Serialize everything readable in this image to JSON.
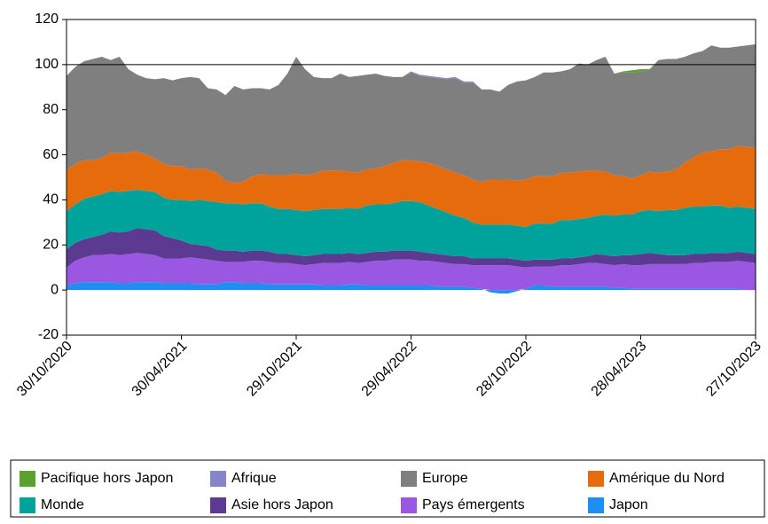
{
  "chart_data": {
    "type": "stacked_area",
    "x": [
      "30/10/2020",
      "13/11/2020",
      "27/11/2020",
      "11/12/2020",
      "25/12/2020",
      "08/01/2021",
      "22/01/2021",
      "05/02/2021",
      "19/02/2021",
      "05/03/2021",
      "19/03/2021",
      "02/04/2021",
      "16/04/2021",
      "30/04/2021",
      "14/05/2021",
      "28/05/2021",
      "11/06/2021",
      "25/06/2021",
      "09/07/2021",
      "23/07/2021",
      "06/08/2021",
      "20/08/2021",
      "03/09/2021",
      "17/09/2021",
      "01/10/2021",
      "15/10/2021",
      "29/10/2021",
      "12/11/2021",
      "26/11/2021",
      "10/12/2021",
      "24/12/2021",
      "07/01/2022",
      "21/01/2022",
      "04/02/2022",
      "18/02/2022",
      "04/03/2022",
      "18/03/2022",
      "01/04/2022",
      "15/04/2022",
      "29/04/2022",
      "13/05/2022",
      "27/05/2022",
      "10/06/2022",
      "24/06/2022",
      "08/07/2022",
      "22/07/2022",
      "05/08/2022",
      "19/08/2022",
      "02/09/2022",
      "16/09/2022",
      "30/09/2022",
      "14/10/2022",
      "28/10/2022",
      "11/11/2022",
      "25/11/2022",
      "09/12/2022",
      "23/12/2022",
      "06/01/2023",
      "20/01/2023",
      "03/02/2023",
      "17/02/2023",
      "03/03/2023",
      "17/03/2023",
      "31/03/2023",
      "14/04/2023",
      "28/04/2023",
      "12/05/2023",
      "26/05/2023",
      "09/06/2023",
      "23/06/2023",
      "07/07/2023",
      "21/07/2023",
      "04/08/2023",
      "18/08/2023",
      "01/09/2023",
      "15/09/2023",
      "29/09/2023",
      "13/10/2023",
      "27/10/2023"
    ],
    "xticks": [
      "30/10/2020",
      "30/04/2021",
      "29/10/2021",
      "29/04/2022",
      "28/10/2022",
      "28/04/2023",
      "27/10/2023"
    ],
    "ylim": [
      -20,
      120
    ],
    "yticks": [
      -20,
      0,
      20,
      40,
      60,
      80,
      100,
      120
    ],
    "hline": 100,
    "series": [
      {
        "name": "Pacifique hors Japon",
        "color": "#5ba12e",
        "values": [
          0,
          0,
          0,
          0,
          0,
          0,
          0,
          0,
          0,
          0,
          0,
          0,
          0,
          0,
          0,
          0,
          0,
          0,
          0,
          0,
          0,
          0,
          0,
          0,
          0,
          0,
          0,
          0,
          0,
          0,
          0,
          0,
          0,
          0,
          0,
          0,
          0,
          0,
          0,
          0,
          0,
          0,
          0,
          0,
          0,
          0,
          0,
          0,
          0,
          0,
          0,
          0,
          0,
          0,
          0,
          0,
          0,
          0,
          0,
          0,
          0,
          0,
          0,
          0.5,
          1,
          1,
          0.5,
          0,
          0,
          0,
          0,
          0,
          0,
          0,
          0,
          0,
          0,
          0,
          0
        ]
      },
      {
        "name": "Afrique",
        "color": "#8585c8",
        "values": [
          0,
          0,
          0,
          0,
          0,
          0,
          0,
          0,
          0,
          0,
          0,
          0,
          0,
          0,
          0,
          0,
          0,
          0,
          0,
          0,
          0,
          0,
          0,
          0,
          0,
          0,
          0,
          0,
          0,
          0,
          0,
          0,
          0,
          0,
          0,
          0,
          0,
          0,
          0,
          0.5,
          0.5,
          0.5,
          0.5,
          0.5,
          0.5,
          0.5,
          0.5,
          0,
          0,
          0,
          0,
          0,
          0,
          0,
          0,
          0,
          0,
          0,
          0,
          0,
          0,
          0,
          0,
          0,
          0,
          0,
          0,
          0,
          0,
          0,
          0,
          0,
          0,
          0,
          0,
          0,
          0,
          0,
          0
        ]
      },
      {
        "name": "Europe",
        "color": "#7f7f7f",
        "values": [
          42,
          43,
          44,
          45,
          45,
          41,
          43,
          37,
          34,
          34,
          35,
          38,
          38,
          39,
          41,
          40,
          36,
          37,
          38,
          43,
          41,
          39,
          38,
          38,
          40,
          45,
          52,
          47,
          43,
          41,
          41,
          43,
          42,
          43,
          42,
          42,
          40,
          38,
          37,
          39,
          38,
          38,
          39,
          40,
          42,
          41,
          43,
          41,
          40,
          39,
          42,
          44,
          44,
          44,
          46,
          46,
          45,
          46,
          48,
          47,
          49,
          51,
          45,
          46,
          47,
          46,
          45,
          50,
          50,
          49,
          47,
          46,
          45,
          47,
          45,
          45,
          44,
          45,
          46
        ]
      },
      {
        "name": "Amérique du Nord",
        "color": "#e66b0c",
        "values": [
          18,
          18,
          17,
          16,
          16,
          17,
          17,
          17,
          17,
          16,
          15,
          15,
          15,
          15,
          14,
          14,
          14,
          13,
          10,
          9,
          10,
          12,
          13,
          14,
          15,
          15,
          16,
          16,
          16,
          17,
          17,
          17,
          16,
          16,
          16,
          16,
          17,
          18,
          18,
          18,
          18,
          19,
          19,
          19,
          19,
          19,
          19,
          19,
          20,
          20,
          20,
          20,
          21,
          21,
          21,
          21,
          21,
          21,
          21,
          21,
          20,
          19,
          18,
          17,
          16,
          16,
          17,
          17,
          17,
          18,
          20,
          22,
          24,
          24,
          25,
          26,
          27,
          27,
          27
        ]
      },
      {
        "name": "Monde",
        "color": "#00a39b",
        "values": [
          17,
          17,
          18,
          18,
          18,
          18,
          18,
          18,
          17,
          17,
          17,
          17,
          17,
          18,
          19,
          20,
          20,
          21,
          21,
          21,
          21,
          21,
          21,
          20,
          20,
          20,
          20,
          20,
          20,
          20,
          20,
          20,
          20,
          20,
          21,
          21,
          21,
          21,
          22,
          22,
          22,
          21,
          20,
          19,
          18,
          17,
          16,
          15,
          15,
          15,
          15,
          15,
          15,
          16,
          16,
          16,
          17,
          17,
          17,
          17,
          17,
          18,
          18,
          18,
          18,
          19,
          19,
          19,
          20,
          20,
          21,
          21,
          21,
          21,
          21,
          20,
          20,
          20,
          20
        ]
      },
      {
        "name": "Asie hors Japon",
        "color": "#5c3a92",
        "values": [
          8,
          8,
          8,
          8,
          9,
          10,
          10,
          10,
          11,
          11,
          11,
          10,
          9,
          8,
          6,
          6,
          6,
          5,
          5,
          5,
          4.5,
          4.5,
          4.5,
          4.5,
          4,
          4,
          4,
          4,
          4,
          4,
          4,
          4,
          4,
          4,
          4,
          4,
          4,
          4,
          4,
          4,
          4,
          3.5,
          3.5,
          3.5,
          3.5,
          3.5,
          3,
          3,
          3,
          3,
          3,
          3,
          3,
          3,
          3,
          3,
          3,
          3,
          3,
          3,
          4,
          4,
          4,
          4,
          4.5,
          5,
          5,
          4.5,
          4,
          4,
          4,
          4,
          4,
          4,
          4,
          4,
          4,
          4,
          4
        ]
      },
      {
        "name": "Pays émergents",
        "color": "#9a58e2",
        "values": [
          8,
          10,
          11,
          12,
          12,
          12.5,
          12.5,
          13,
          13,
          12.5,
          12,
          11,
          11,
          11,
          11.5,
          11.5,
          11,
          10.5,
          9,
          9,
          9.5,
          10,
          10,
          10,
          9.5,
          9.5,
          9,
          8.5,
          9,
          10,
          10,
          10,
          10,
          9.5,
          10.5,
          11,
          11,
          11.5,
          11.5,
          11.5,
          11,
          11,
          11,
          10.5,
          10,
          10,
          10,
          10.5,
          11,
          11,
          11,
          10.5,
          9.5,
          8.5,
          8.5,
          9,
          9.5,
          9.5,
          10,
          10.5,
          10.5,
          10,
          10,
          10.5,
          10.5,
          10.5,
          11,
          11,
          11,
          11,
          11,
          11.5,
          11.5,
          12,
          12,
          12,
          12.5,
          12.5,
          12
        ]
      },
      {
        "name": "Japon",
        "color": "#1e8ff2",
        "values": [
          2,
          3,
          3.5,
          3.5,
          3.5,
          3.5,
          3,
          3,
          3.5,
          3.5,
          3.5,
          3,
          3,
          3,
          3,
          2.5,
          2.5,
          2.5,
          3.5,
          3.5,
          3,
          3,
          3,
          2.5,
          2.5,
          2.5,
          2.5,
          2.5,
          2.5,
          2,
          2,
          2,
          2.5,
          2.5,
          2,
          2,
          2,
          2,
          2,
          2,
          2,
          2,
          1.5,
          1.5,
          1.5,
          1.5,
          1,
          0.5,
          -1,
          -1.5,
          -1.5,
          -0.5,
          0.5,
          2,
          2,
          1.5,
          1.5,
          1.5,
          1.5,
          1.5,
          1.5,
          1.5,
          1,
          1,
          0.5,
          0.5,
          0.5,
          0.5,
          0.5,
          0.5,
          0.5,
          0.5,
          0.5,
          0.5,
          0.5,
          0.5,
          0.5,
          0,
          0
        ]
      }
    ]
  }
}
